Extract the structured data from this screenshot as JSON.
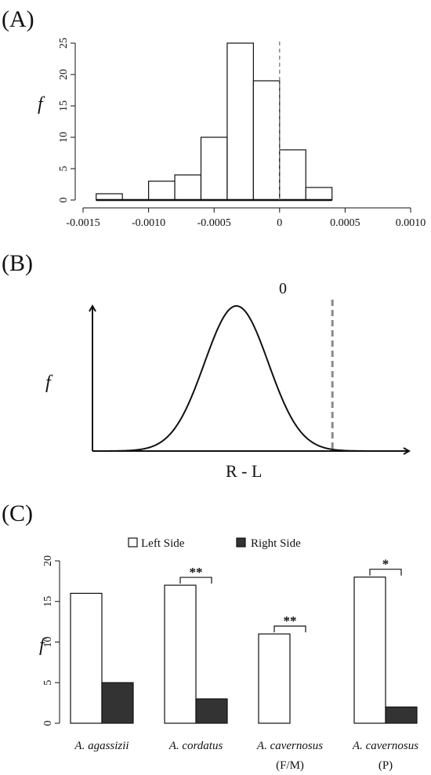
{
  "panels": {
    "a_label": "(A)",
    "b_label": "(B)",
    "c_label": "(C)"
  },
  "chart_data": [
    {
      "type": "bar",
      "subtype": "histogram",
      "panel": "(A)",
      "ylabel": "f",
      "xlabel": "",
      "bins": [
        {
          "x0": -0.0014,
          "x1": -0.0012,
          "count": 1
        },
        {
          "x0": -0.0012,
          "x1": -0.001,
          "count": 0
        },
        {
          "x0": -0.001,
          "x1": -0.0008,
          "count": 3
        },
        {
          "x0": -0.0008,
          "x1": -0.0006,
          "count": 4
        },
        {
          "x0": -0.0006,
          "x1": -0.0004,
          "count": 10
        },
        {
          "x0": -0.0004,
          "x1": -0.0002,
          "count": 25
        },
        {
          "x0": -0.0002,
          "x1": 0.0,
          "count": 19
        },
        {
          "x0": 0.0,
          "x1": 0.0002,
          "count": 8
        },
        {
          "x0": 0.0002,
          "x1": 0.0004,
          "count": 2
        }
      ],
      "xlim": [
        -0.0015,
        0.001
      ],
      "ylim": [
        0,
        25
      ],
      "x_ticks": [
        -0.0015,
        -0.001,
        -0.0005,
        0.0,
        0.0005,
        0.001
      ],
      "x_tick_labels": [
        "-0.0015",
        "-0.0010",
        "-0.0005",
        "0",
        "0.0005",
        "0.0010"
      ],
      "y_ticks": [
        0,
        5,
        10,
        15,
        20,
        25
      ],
      "y_tick_labels": [
        "0",
        "5",
        "10",
        "15",
        "20",
        "25"
      ],
      "reference_line": {
        "x": 0,
        "style": "dashed"
      }
    },
    {
      "type": "line",
      "panel": "(B)",
      "description_curve": "normal",
      "mean": -0.3,
      "sd": 0.1,
      "xlim": [
        -0.75,
        0.1
      ],
      "ylabel": "f",
      "xlabel": "R - L",
      "reference_line": {
        "x": 0,
        "label": "0",
        "style": "dashed"
      }
    },
    {
      "type": "bar",
      "panel": "(C)",
      "ylabel": "f",
      "categories": [
        "A. agassizii",
        "A. cordatus",
        "A. cavernosus",
        "A. cavernosus"
      ],
      "category_sublabels": [
        "",
        "",
        "(F/M)",
        "(P)"
      ],
      "series": [
        {
          "name": "Left Side",
          "color": "#ffffff",
          "values": [
            16,
            17,
            11,
            18
          ]
        },
        {
          "name": "Right Side",
          "color": "#333333",
          "values": [
            5,
            3,
            0,
            2
          ]
        }
      ],
      "significance": [
        "",
        "**",
        "**",
        "*"
      ],
      "ylim": [
        0,
        20
      ],
      "y_ticks": [
        0,
        5,
        10,
        15,
        20
      ],
      "y_tick_labels": [
        "0",
        "5",
        "10",
        "15",
        "20"
      ],
      "legend": "top"
    }
  ]
}
